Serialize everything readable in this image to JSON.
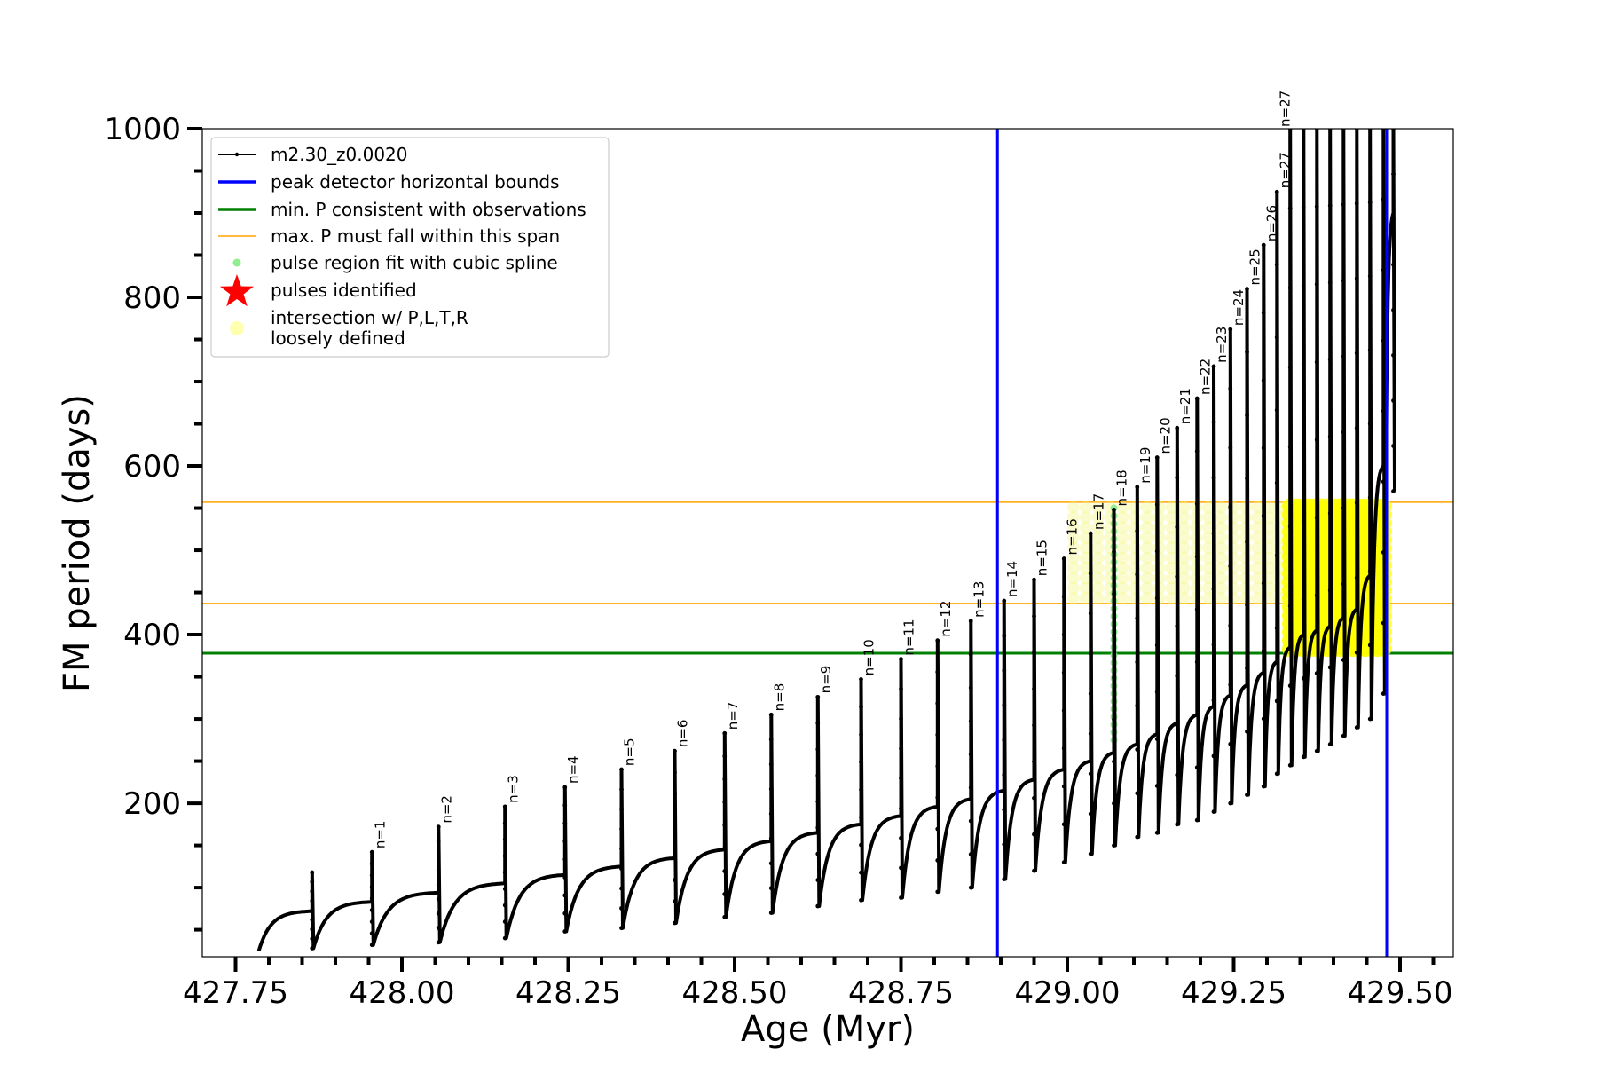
{
  "chart_data": {
    "type": "line",
    "xlabel": "Age (Myr)",
    "ylabel": "FM period (days)",
    "xlim": [
      427.7,
      429.58
    ],
    "ylim": [
      18,
      1000
    ],
    "x_ticks": [
      427.75,
      428.0,
      428.25,
      428.5,
      428.75,
      429.0,
      429.25,
      429.5
    ],
    "x_tick_labels": [
      "427.75",
      "428.00",
      "428.25",
      "428.50",
      "428.75",
      "429.00",
      "429.25",
      "429.50"
    ],
    "y_ticks": [
      200,
      400,
      600,
      800,
      1000
    ],
    "y_tick_labels": [
      "200",
      "400",
      "600",
      "800",
      "1000"
    ],
    "grid": false,
    "legend_position": "top-left",
    "legend": [
      {
        "label": "m2.30_z0.0020",
        "style": "line-dots",
        "color": "#000000"
      },
      {
        "label": "peak detector horizontal bounds",
        "style": "line",
        "color": "#0000ff"
      },
      {
        "label": "min. P consistent with observations",
        "style": "line",
        "color": "#008000"
      },
      {
        "label": "max. P must fall within this span",
        "style": "thin-line",
        "color": "#ffa500"
      },
      {
        "label": "pulse region fit with cubic spline",
        "style": "dot",
        "color": "#90ee90"
      },
      {
        "label": "pulses identified",
        "style": "star",
        "color": "#ff0000"
      },
      {
        "label_lines": [
          "intersection w/ P,L,T,R",
          "loosely defined"
        ],
        "style": "circle",
        "color": "#ffffb0"
      }
    ],
    "vertical_lines": [
      {
        "x": 428.895,
        "color": "#0000ff"
      },
      {
        "x": 429.48,
        "color": "#0000ff"
      }
    ],
    "horizontal_lines": [
      {
        "y": 378,
        "color": "#008000"
      },
      {
        "y": 437,
        "color": "#ffa500"
      },
      {
        "y": 557,
        "color": "#ffa500"
      }
    ],
    "series_name": "m2.30_z0.0020",
    "series_color": "#000000",
    "pulses": [
      {
        "n": "",
        "x": 427.865,
        "peak": 118,
        "base": 72,
        "dip": 28
      },
      {
        "n": "n=1",
        "x": 427.955,
        "peak": 142,
        "base": 83,
        "dip": 32
      },
      {
        "n": "n=2",
        "x": 428.055,
        "peak": 172,
        "base": 94,
        "dip": 35
      },
      {
        "n": "n=3",
        "x": 428.155,
        "peak": 196,
        "base": 105,
        "dip": 40
      },
      {
        "n": "n=4",
        "x": 428.245,
        "peak": 219,
        "base": 115,
        "dip": 48
      },
      {
        "n": "n=5",
        "x": 428.33,
        "peak": 240,
        "base": 125,
        "dip": 52
      },
      {
        "n": "n=6",
        "x": 428.41,
        "peak": 262,
        "base": 135,
        "dip": 58
      },
      {
        "n": "n=7",
        "x": 428.485,
        "peak": 283,
        "base": 145,
        "dip": 65
      },
      {
        "n": "n=8",
        "x": 428.555,
        "peak": 305,
        "base": 155,
        "dip": 70
      },
      {
        "n": "n=9",
        "x": 428.625,
        "peak": 326,
        "base": 165,
        "dip": 78
      },
      {
        "n": "n=10",
        "x": 428.69,
        "peak": 347,
        "base": 175,
        "dip": 85
      },
      {
        "n": "n=11",
        "x": 428.75,
        "peak": 371,
        "base": 185,
        "dip": 88
      },
      {
        "n": "n=12",
        "x": 428.805,
        "peak": 393,
        "base": 196,
        "dip": 95
      },
      {
        "n": "n=13",
        "x": 428.855,
        "peak": 416,
        "base": 205,
        "dip": 100
      },
      {
        "n": "n=14",
        "x": 428.905,
        "peak": 440,
        "base": 215,
        "dip": 110
      },
      {
        "n": "n=15",
        "x": 428.95,
        "peak": 465,
        "base": 228,
        "dip": 120
      },
      {
        "n": "n=16",
        "x": 428.995,
        "peak": 490,
        "base": 240,
        "dip": 130
      },
      {
        "n": "n=17",
        "x": 429.035,
        "peak": 520,
        "base": 250,
        "dip": 140
      },
      {
        "n": "n=18",
        "x": 429.07,
        "peak": 548,
        "base": 260,
        "dip": 150
      },
      {
        "n": "n=19",
        "x": 429.105,
        "peak": 575,
        "base": 270,
        "dip": 160
      },
      {
        "n": "n=20",
        "x": 429.135,
        "peak": 610,
        "base": 282,
        "dip": 165
      },
      {
        "n": "n=21",
        "x": 429.165,
        "peak": 645,
        "base": 295,
        "dip": 175
      },
      {
        "n": "n=22",
        "x": 429.195,
        "peak": 680,
        "base": 305,
        "dip": 180
      },
      {
        "n": "n=23",
        "x": 429.22,
        "peak": 718,
        "base": 315,
        "dip": 190
      },
      {
        "n": "n=24",
        "x": 429.245,
        "peak": 762,
        "base": 328,
        "dip": 200
      },
      {
        "n": "n=25",
        "x": 429.27,
        "peak": 810,
        "base": 340,
        "dip": 210
      },
      {
        "n": "n=26",
        "x": 429.295,
        "peak": 862,
        "base": 355,
        "dip": 220
      },
      {
        "n": "n=27",
        "x": 429.315,
        "peak": 925,
        "base": 368,
        "dip": 235
      },
      {
        "n": "",
        "x": 429.335,
        "peak": 1000,
        "base": 385,
        "dip": 245
      },
      {
        "n": "",
        "x": 429.355,
        "peak": 1000,
        "base": 400,
        "dip": 255
      },
      {
        "n": "",
        "x": 429.375,
        "peak": 1000,
        "base": 405,
        "dip": 262
      },
      {
        "n": "",
        "x": 429.395,
        "peak": 1000,
        "base": 410,
        "dip": 270
      },
      {
        "n": "",
        "x": 429.415,
        "peak": 1000,
        "base": 420,
        "dip": 280
      },
      {
        "n": "",
        "x": 429.435,
        "peak": 1000,
        "base": 430,
        "dip": 290
      },
      {
        "n": "",
        "x": 429.455,
        "peak": 1000,
        "base": 470,
        "dip": 300
      },
      {
        "n": "",
        "x": 429.475,
        "peak": 1000,
        "base": 600,
        "dip": 330
      },
      {
        "n": "",
        "x": 429.49,
        "peak": 1000,
        "base": 900,
        "dip": 570
      }
    ],
    "labels_drawn_for": "n=1 ... n=27",
    "spline_region": {
      "x": 429.07,
      "ymin": 275,
      "ymax": 550
    },
    "intersection_regions": [
      {
        "xmin": 429.0,
        "xmax": 429.48,
        "ymin": 437,
        "ymax": 557
      },
      {
        "xmin": 429.33,
        "xmax": 429.48,
        "ymin": 378,
        "ymax": 557
      }
    ]
  }
}
